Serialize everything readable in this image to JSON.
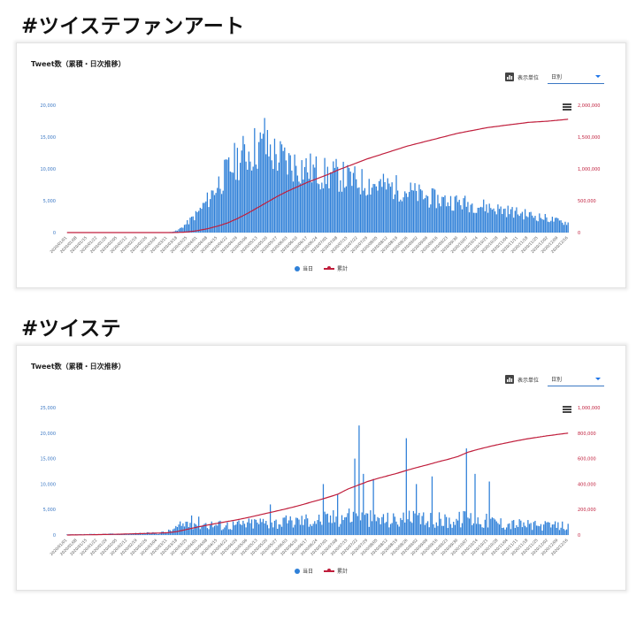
{
  "sections": [
    {
      "heading": "#ツイステファンアート",
      "card": {
        "title": "Tweet数（累積・日次推移）",
        "unit_label": "表示単位",
        "unit_value": "日別",
        "legend": [
          "当日",
          "累計"
        ]
      }
    },
    {
      "heading": "#ツイステ",
      "card": {
        "title": "Tweet数（累積・日次推移）",
        "unit_label": "表示単位",
        "unit_value": "日別",
        "legend": [
          "当日",
          "累計"
        ]
      }
    }
  ],
  "colors": {
    "bar": "#2f80d8",
    "line": "#c01e3c",
    "left_axis": "#3b78c4",
    "right_axis": "#c01e3c"
  },
  "chart_data": [
    {
      "type": "bar",
      "title": "Tweet数（累積・日次推移）",
      "x_tick_labels": [
        "2020/01/01",
        "2020/01/08",
        "2020/01/15",
        "2020/01/22",
        "2020/01/29",
        "2020/02/05",
        "2020/02/12",
        "2020/02/19",
        "2020/02/26",
        "2020/03/04",
        "2020/03/11",
        "2020/03/18",
        "2020/03/25",
        "2020/04/01",
        "2020/04/08",
        "2020/04/15",
        "2020/04/22",
        "2020/04/29",
        "2020/05/06",
        "2020/05/13",
        "2020/05/20",
        "2020/05/27",
        "2020/06/03",
        "2020/06/10",
        "2020/06/17",
        "2020/06/24",
        "2020/07/01",
        "2020/07/08",
        "2020/07/15",
        "2020/07/22",
        "2020/07/29",
        "2020/08/05",
        "2020/08/12",
        "2020/08/19",
        "2020/08/26",
        "2020/09/02",
        "2020/09/09",
        "2020/09/16",
        "2020/09/23",
        "2020/09/30",
        "2020/10/07",
        "2020/10/14",
        "2020/10/21",
        "2020/10/28",
        "2020/11/04",
        "2020/11/11",
        "2020/11/18",
        "2020/11/25",
        "2020/12/02",
        "2020/12/09",
        "2020/12/16"
      ],
      "y_left_ticks": [
        "0",
        "5,000",
        "10,000",
        "15,000",
        "20,000"
      ],
      "y_left_range": [
        0,
        20000
      ],
      "y_right_ticks": [
        "0",
        "500,000",
        "1,000,000",
        "1,500,000",
        "2,000,000"
      ],
      "y_right_range": [
        0,
        2000000
      ],
      "series": [
        {
          "name": "当日",
          "type": "bar",
          "weekly_values": [
            0,
            0,
            0,
            0,
            0,
            0,
            0,
            0,
            0,
            0,
            0,
            300,
            1500,
            3000,
            5000,
            7500,
            9500,
            11500,
            12500,
            13500,
            13000,
            12000,
            11000,
            10500,
            10000,
            9500,
            9000,
            9000,
            8500,
            8000,
            7800,
            7500,
            7200,
            7000,
            6500,
            6000,
            5500,
            5200,
            5000,
            4800,
            4500,
            4300,
            4000,
            3700,
            3400,
            3100,
            2800,
            2500,
            2200,
            1800,
            1500
          ],
          "peak": {
            "x": "2020/05/18",
            "y": 18000
          }
        },
        {
          "name": "累計",
          "type": "line",
          "weekly_values": [
            0,
            0,
            0,
            0,
            0,
            0,
            0,
            0,
            0,
            0,
            0,
            1000,
            10000,
            30000,
            60000,
            100000,
            150000,
            220000,
            300000,
            390000,
            480000,
            570000,
            650000,
            720000,
            790000,
            850000,
            910000,
            980000,
            1040000,
            1100000,
            1160000,
            1210000,
            1260000,
            1310000,
            1360000,
            1400000,
            1440000,
            1480000,
            1520000,
            1560000,
            1590000,
            1620000,
            1650000,
            1670000,
            1690000,
            1710000,
            1730000,
            1740000,
            1750000,
            1765000,
            1780000
          ]
        }
      ],
      "legend_position": "bottom-center"
    },
    {
      "type": "bar",
      "title": "Tweet数（累積・日次推移）",
      "x_tick_labels": [
        "2020/01/01",
        "2020/01/08",
        "2020/01/15",
        "2020/01/22",
        "2020/01/29",
        "2020/02/05",
        "2020/02/12",
        "2020/02/19",
        "2020/02/26",
        "2020/03/04",
        "2020/03/11",
        "2020/03/18",
        "2020/03/25",
        "2020/04/01",
        "2020/04/08",
        "2020/04/15",
        "2020/04/22",
        "2020/04/29",
        "2020/05/06",
        "2020/05/13",
        "2020/05/20",
        "2020/05/27",
        "2020/06/03",
        "2020/06/10",
        "2020/06/17",
        "2020/06/24",
        "2020/07/01",
        "2020/07/08",
        "2020/07/15",
        "2020/07/22",
        "2020/07/29",
        "2020/08/05",
        "2020/08/12",
        "2020/08/19",
        "2020/08/26",
        "2020/09/02",
        "2020/09/09",
        "2020/09/16",
        "2020/09/23",
        "2020/09/30",
        "2020/10/07",
        "2020/10/14",
        "2020/10/21",
        "2020/10/28",
        "2020/11/04",
        "2020/11/11",
        "2020/11/18",
        "2020/11/25",
        "2020/12/02",
        "2020/12/09",
        "2020/12/16"
      ],
      "y_left_ticks": [
        "0",
        "5,000",
        "10,000",
        "15,000",
        "20,000",
        "25,000"
      ],
      "y_left_range": [
        0,
        25000
      ],
      "y_right_ticks": [
        "0",
        "200,000",
        "400,000",
        "600,000",
        "800,000",
        "1,000,000"
      ],
      "y_right_range": [
        0,
        1000000
      ],
      "series": [
        {
          "name": "当日",
          "type": "bar",
          "weekly_values": [
            100,
            100,
            150,
            150,
            200,
            200,
            250,
            300,
            350,
            400,
            600,
            1500,
            2500,
            2500,
            2200,
            2000,
            2000,
            2000,
            2200,
            2500,
            2500,
            2500,
            2500,
            2800,
            3000,
            3000,
            3200,
            3500,
            4000,
            3500,
            3300,
            3200,
            3000,
            3000,
            3200,
            3000,
            2800,
            3000,
            2800,
            3000,
            3500,
            3000,
            2800,
            2500,
            2200,
            2200,
            2000,
            1800,
            1800,
            1800,
            2000
          ],
          "spikes": [
            {
              "x": "2020/07/23",
              "y": 21500
            },
            {
              "x": "2020/07/20",
              "y": 15000
            },
            {
              "x": "2020/08/25",
              "y": 19000
            },
            {
              "x": "2020/10/06",
              "y": 17000
            },
            {
              "x": "2020/07/26",
              "y": 12000
            },
            {
              "x": "2020/08/02",
              "y": 11000
            },
            {
              "x": "2020/09/12",
              "y": 11500
            },
            {
              "x": "2020/10/12",
              "y": 12000
            },
            {
              "x": "2020/10/22",
              "y": 10500
            },
            {
              "x": "2020/09/01",
              "y": 10000
            },
            {
              "x": "2020/06/28",
              "y": 10000
            },
            {
              "x": "2020/05/22",
              "y": 6000
            },
            {
              "x": "2020/07/08",
              "y": 8000
            }
          ]
        },
        {
          "name": "累計",
          "type": "line",
          "weekly_values": [
            0,
            1000,
            2000,
            3000,
            4500,
            6000,
            8000,
            10000,
            12500,
            15000,
            18000,
            27000,
            45000,
            62000,
            78000,
            92000,
            106000,
            120000,
            136000,
            154000,
            172000,
            190000,
            208000,
            228000,
            250000,
            272000,
            295000,
            320000,
            360000,
            390000,
            420000,
            444000,
            465000,
            486000,
            510000,
            532000,
            552000,
            574000,
            594000,
            616000,
            650000,
            672000,
            692000,
            710000,
            726000,
            742000,
            756000,
            768000,
            780000,
            790000,
            800000
          ]
        }
      ],
      "legend_position": "bottom-center"
    }
  ]
}
